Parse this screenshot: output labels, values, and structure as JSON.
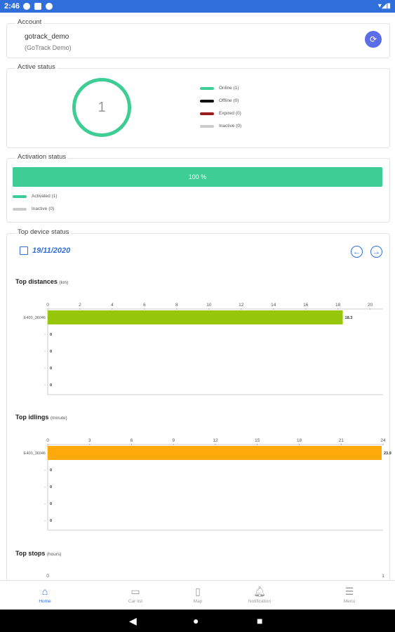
{
  "status_bar": {
    "time": "2:46",
    "right_icons": "▾◢▮"
  },
  "account": {
    "legend": "Account",
    "username": "gotrack_demo",
    "display_name": "(GoTrack Demo)",
    "button_icon": "sync-icon"
  },
  "active_status": {
    "legend": "Active status",
    "count": "1",
    "items": [
      {
        "label": "Online (1)",
        "color": "#3ecd94"
      },
      {
        "label": "Offline (0)",
        "color": "#111111"
      },
      {
        "label": "Expired (0)",
        "color": "#9b1c1c"
      },
      {
        "label": "Inactive (0)",
        "color": "#cccccc"
      }
    ]
  },
  "activation_status": {
    "legend": "Activation status",
    "percent_label": "100 %",
    "percent": 100,
    "items": [
      {
        "label": "Activated (1)",
        "color": "#3ecd94"
      },
      {
        "label": "Inactive (0)",
        "color": "#cccccc"
      }
    ]
  },
  "top_device_status": {
    "legend": "Top device status",
    "date": "19/11/2020",
    "prev_icon": "arrow-left-icon",
    "next_icon": "arrow-right-icon"
  },
  "chart_data": [
    {
      "type": "bar",
      "orientation": "horizontal",
      "title": "Top distances",
      "unit": "(km)",
      "categories": [
        "E400_36046",
        "-",
        "-",
        "-",
        "-"
      ],
      "values": [
        18.3,
        0,
        0,
        0,
        0
      ],
      "value_labels": [
        "18.3",
        "0",
        "0",
        "0",
        "0"
      ],
      "xlim": [
        0,
        20.8
      ],
      "ticks": [
        "0",
        "2",
        "4",
        "6",
        "8",
        "10",
        "12",
        "14",
        "16",
        "18",
        "20"
      ],
      "color": "#97c70a"
    },
    {
      "type": "bar",
      "orientation": "horizontal",
      "title": "Top idlings",
      "unit": "(minute)",
      "categories": [
        "E400_36046",
        "-",
        "-",
        "-",
        "-"
      ],
      "values": [
        23.9,
        0,
        0,
        0,
        0
      ],
      "value_labels": [
        "23.9",
        "0",
        "0",
        "0",
        "0"
      ],
      "xlim": [
        0,
        24
      ],
      "ticks": [
        "0",
        "3",
        "6",
        "9",
        "12",
        "15",
        "18",
        "21",
        "24"
      ],
      "color": "#ffa90a"
    },
    {
      "type": "bar",
      "orientation": "horizontal",
      "title": "Top stops",
      "unit": "(hours)",
      "categories": [],
      "values": [],
      "xlim": [
        0,
        1
      ],
      "ticks": [
        "0",
        "1"
      ],
      "color": "#5b6ee8"
    }
  ],
  "bottom_nav": [
    {
      "label": "Home",
      "icon": "home-icon",
      "glyph": "⌂",
      "active": true
    },
    {
      "label": "Car list",
      "icon": "car-icon",
      "glyph": "▭",
      "active": false
    },
    {
      "label": "Map",
      "icon": "map-icon",
      "glyph": "▯",
      "active": false
    },
    {
      "label": "Notification",
      "icon": "bell-icon",
      "glyph": "🔔︎",
      "active": false
    },
    {
      "label": "Menu",
      "icon": "menu-icon",
      "glyph": "☰",
      "active": false
    }
  ],
  "system_nav": {
    "back": "◀",
    "home": "●",
    "recents": "■"
  }
}
